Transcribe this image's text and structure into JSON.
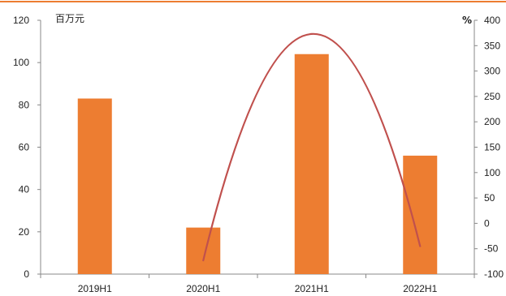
{
  "chart_data": {
    "type": "bar",
    "categories": [
      "2019H1",
      "2020H1",
      "2021H1",
      "2022H1"
    ],
    "series": [
      {
        "type": "bar",
        "axis": "left",
        "values": [
          83,
          22,
          104,
          56
        ],
        "color": "#ED7D31"
      },
      {
        "type": "line",
        "axis": "right",
        "smooth": true,
        "color": "#C0504D",
        "points": [
          {
            "category": "2020H1",
            "value": -73
          },
          {
            "category": "2021H1",
            "value": 373
          },
          {
            "category": "2022H1",
            "value": -45
          }
        ]
      }
    ],
    "y_left": {
      "unit_label": "百万元",
      "ylim": [
        0,
        120
      ],
      "ticks": [
        0,
        20,
        40,
        60,
        80,
        100,
        120
      ]
    },
    "y_right": {
      "unit_label": "%",
      "ylim": [
        -100,
        400
      ],
      "ticks": [
        -100,
        -50,
        0,
        50,
        100,
        150,
        200,
        250,
        300,
        350,
        400
      ]
    },
    "grid": false,
    "top_rule_color": "#ED7D31"
  }
}
